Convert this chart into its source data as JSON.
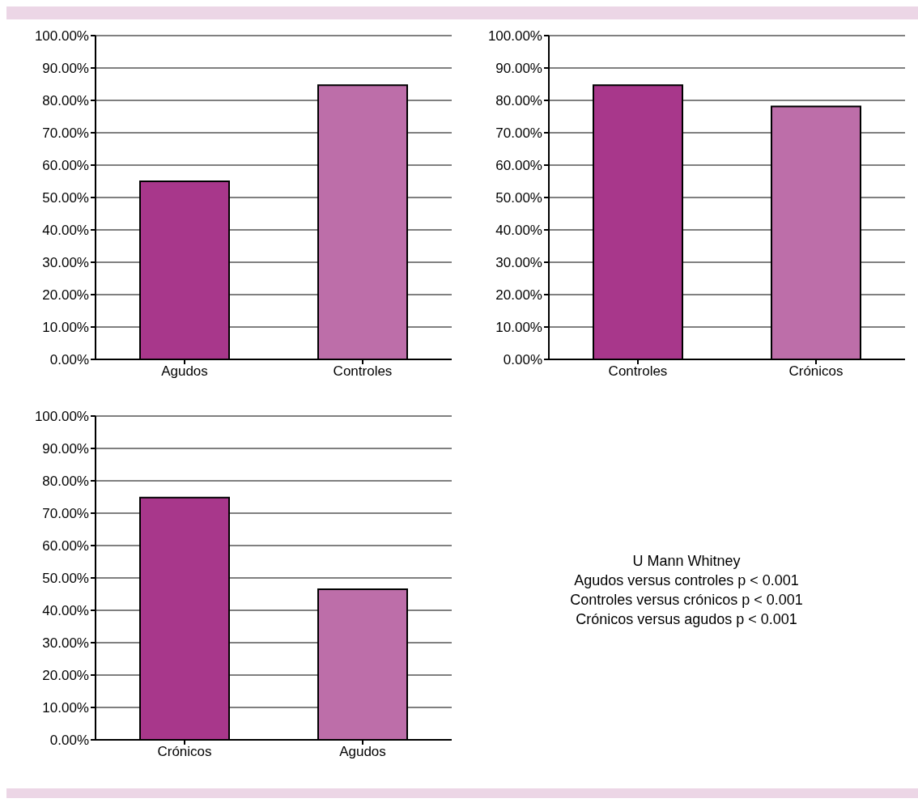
{
  "chart_data": [
    {
      "type": "bar",
      "categories": [
        "Agudos",
        "Controles"
      ],
      "values": [
        55,
        84.7
      ],
      "colors": [
        "#a8378b",
        "#bd6ea9"
      ],
      "ylim": [
        0,
        100
      ],
      "yticks": [
        {
          "value": 0,
          "label": "0.00%"
        },
        {
          "value": 10,
          "label": "10.00%"
        },
        {
          "value": 20,
          "label": "20.00%"
        },
        {
          "value": 30,
          "label": "30.00%"
        },
        {
          "value": 40,
          "label": "40.00%"
        },
        {
          "value": 50,
          "label": "50.00%"
        },
        {
          "value": 60,
          "label": "60.00%"
        },
        {
          "value": 70,
          "label": "70.00%"
        },
        {
          "value": 80,
          "label": "80.00%"
        },
        {
          "value": 90,
          "label": "90.00%"
        },
        {
          "value": 100,
          "label": "100.00%"
        }
      ],
      "grid": "y"
    },
    {
      "type": "bar",
      "categories": [
        "Controles",
        "Crónicos"
      ],
      "values": [
        84.7,
        78.1
      ],
      "colors": [
        "#a8378b",
        "#bd6ea9"
      ],
      "ylim": [
        0,
        100
      ],
      "yticks": [
        {
          "value": 0,
          "label": "0.00%"
        },
        {
          "value": 10,
          "label": "10.00%"
        },
        {
          "value": 20,
          "label": "20.00%"
        },
        {
          "value": 30,
          "label": "30.00%"
        },
        {
          "value": 40,
          "label": "40.00%"
        },
        {
          "value": 50,
          "label": "50.00%"
        },
        {
          "value": 60,
          "label": "60.00%"
        },
        {
          "value": 70,
          "label": "70.00%"
        },
        {
          "value": 80,
          "label": "80.00%"
        },
        {
          "value": 90,
          "label": "90.00%"
        },
        {
          "value": 100,
          "label": "100.00%"
        }
      ],
      "grid": "y"
    },
    {
      "type": "bar",
      "categories": [
        "Crónicos",
        "Agudos"
      ],
      "values": [
        74.8,
        46.5
      ],
      "colors": [
        "#a8378b",
        "#bd6ea9"
      ],
      "ylim": [
        0,
        100
      ],
      "yticks": [
        {
          "value": 0,
          "label": "0.00%"
        },
        {
          "value": 10,
          "label": "10.00%"
        },
        {
          "value": 20,
          "label": "20.00%"
        },
        {
          "value": 30,
          "label": "30.00%"
        },
        {
          "value": 40,
          "label": "40.00%"
        },
        {
          "value": 50,
          "label": "50.00%"
        },
        {
          "value": 60,
          "label": "60.00%"
        },
        {
          "value": 70,
          "label": "70.00%"
        },
        {
          "value": 80,
          "label": "80.00%"
        },
        {
          "value": 90,
          "label": "90.00%"
        },
        {
          "value": 100,
          "label": "100.00%"
        }
      ],
      "grid": "y"
    },
    {
      "type": "other",
      "annotations": [
        "U Mann Whitney",
        "Agudos versus controles p < 0.001",
        "Controles versus crónicos p < 0.001",
        "Crónicos versus agudos p < 0.001"
      ]
    }
  ]
}
